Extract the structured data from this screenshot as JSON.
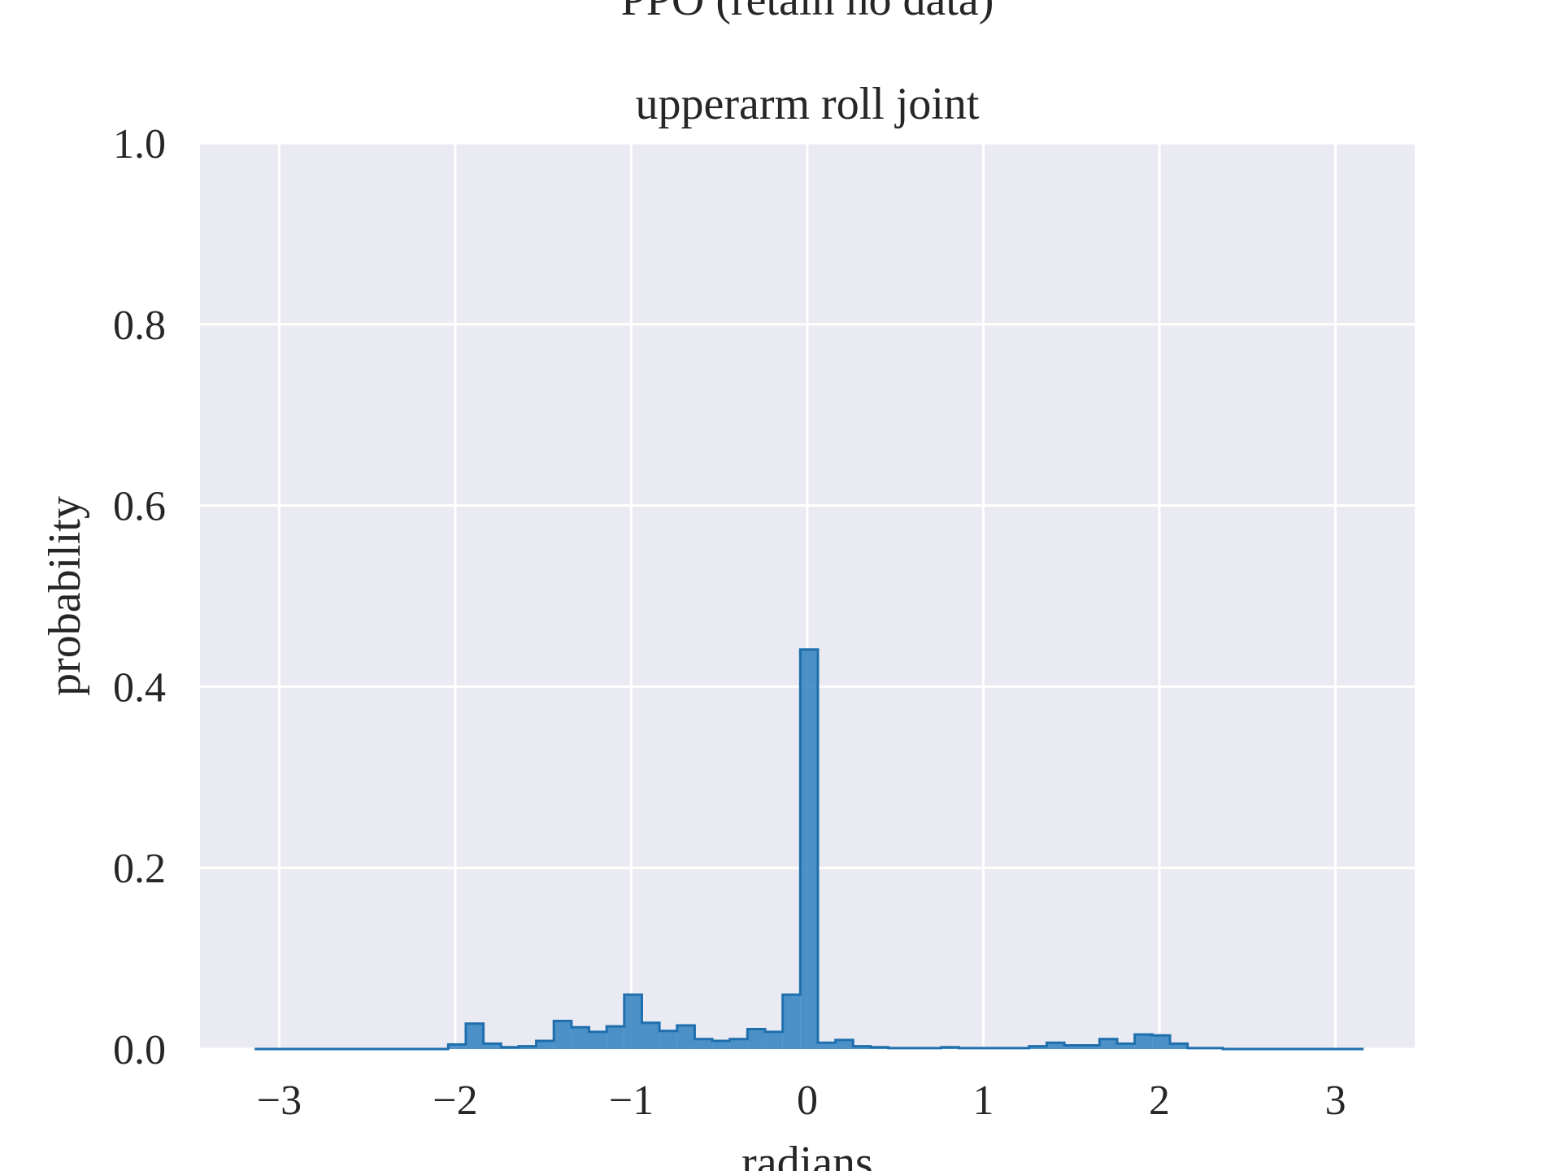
{
  "chart_data": {
    "type": "histogram",
    "suptitle": "PPO (retain no data)",
    "title": "upperarm roll joint",
    "xlabel": "radians",
    "ylabel": "probability",
    "xlim": [
      -3.45,
      3.45
    ],
    "ylim": [
      0.0,
      1.0
    ],
    "xticks": [
      -3,
      -2,
      -1,
      0,
      1,
      2,
      3
    ],
    "xtick_labels": [
      "−3",
      "−2",
      "−1",
      "0",
      "1",
      "2",
      "3"
    ],
    "yticks": [
      0.0,
      0.2,
      0.4,
      0.6,
      0.8,
      1.0
    ],
    "ytick_labels": [
      "0.0",
      "0.2",
      "0.4",
      "0.6",
      "0.8",
      "1.0"
    ],
    "grid": true,
    "bin_edges": [
      -3.14,
      -3.04,
      -2.94,
      -2.84,
      -2.74,
      -2.64,
      -2.54,
      -2.44,
      -2.34,
      -2.24,
      -2.14,
      -2.04,
      -1.94,
      -1.84,
      -1.74,
      -1.64,
      -1.54,
      -1.44,
      -1.34,
      -1.24,
      -1.14,
      -1.04,
      -0.94,
      -0.84,
      -0.74,
      -0.64,
      -0.54,
      -0.44,
      -0.34,
      -0.24,
      -0.14,
      -0.04,
      0.06,
      0.16,
      0.26,
      0.36,
      0.46,
      0.56,
      0.66,
      0.76,
      0.86,
      0.96,
      1.06,
      1.16,
      1.26,
      1.36,
      1.46,
      1.56,
      1.66,
      1.76,
      1.86,
      1.96,
      2.06,
      2.16,
      2.26,
      2.36,
      2.46,
      2.56,
      2.66,
      2.76,
      2.86,
      2.96,
      3.06,
      3.16
    ],
    "values": [
      0,
      0,
      0,
      0,
      0,
      0,
      0,
      0,
      0,
      0,
      0,
      0.005,
      0.028,
      0.006,
      0.002,
      0.003,
      0.009,
      0.031,
      0.024,
      0.019,
      0.025,
      0.06,
      0.029,
      0.02,
      0.026,
      0.011,
      0.009,
      0.011,
      0.022,
      0.019,
      0.06,
      0.441,
      0.007,
      0.01,
      0.003,
      0.002,
      0.001,
      0.001,
      0.001,
      0.002,
      0.001,
      0.001,
      0.001,
      0.001,
      0.003,
      0.007,
      0.004,
      0.004,
      0.011,
      0.006,
      0.016,
      0.015,
      0.006,
      0.001,
      0.001,
      0,
      0,
      0,
      0,
      0,
      0,
      0,
      0
    ],
    "colors": {
      "bar_fill": "#3a87c2",
      "bar_edge": "#1f6fae",
      "plot_background": "#eaeaf2",
      "grid": "#ffffff",
      "text": "#262626"
    }
  }
}
